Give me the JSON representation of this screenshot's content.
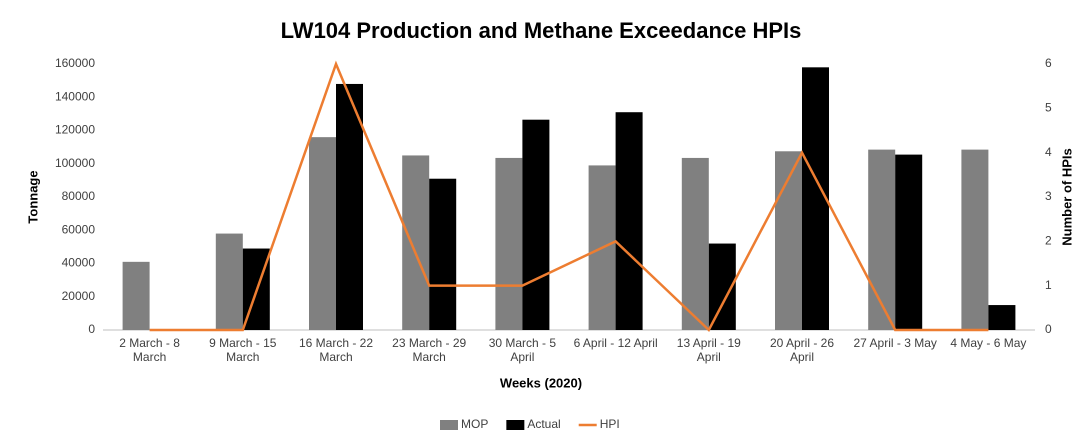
{
  "chart_data": {
    "type": "bar",
    "title": "LW104 Production and Methane Exceedance HPIs",
    "xlabel": "Weeks (2020)",
    "ylabel": "Tonnage",
    "y2label": "Number of HPIs",
    "categories": [
      "2 March - 8 March",
      "9 March - 15 March",
      "16 March - 22 March",
      "23 March - 29 March",
      "30 March - 5 April",
      "6 April - 12 April",
      "13 April - 19 April",
      "20 April - 26 April",
      "27 April - 3 May",
      "4 May - 6 May"
    ],
    "series": [
      {
        "name": "MOP",
        "type": "bar",
        "color": "#808080",
        "values": [
          41000,
          58000,
          116000,
          105000,
          103500,
          99000,
          103500,
          107500,
          108500,
          108500
        ]
      },
      {
        "name": "Actual",
        "type": "bar",
        "color": "#000000",
        "values": [
          null,
          49000,
          148000,
          91000,
          126500,
          131000,
          52000,
          158000,
          105500,
          15000
        ]
      },
      {
        "name": "HPI",
        "type": "line",
        "axis": "y2",
        "color": "#ED7D31",
        "values": [
          0,
          0,
          6,
          1,
          1,
          2,
          0,
          4,
          0,
          0
        ]
      }
    ],
    "ylim": [
      0,
      160000
    ],
    "yticks": [
      0,
      20000,
      40000,
      60000,
      80000,
      100000,
      120000,
      140000,
      160000
    ],
    "y2lim": [
      0,
      6
    ],
    "y2ticks": [
      0,
      1,
      2,
      3,
      4,
      5,
      6
    ],
    "legend": "bottom",
    "grid": false
  }
}
